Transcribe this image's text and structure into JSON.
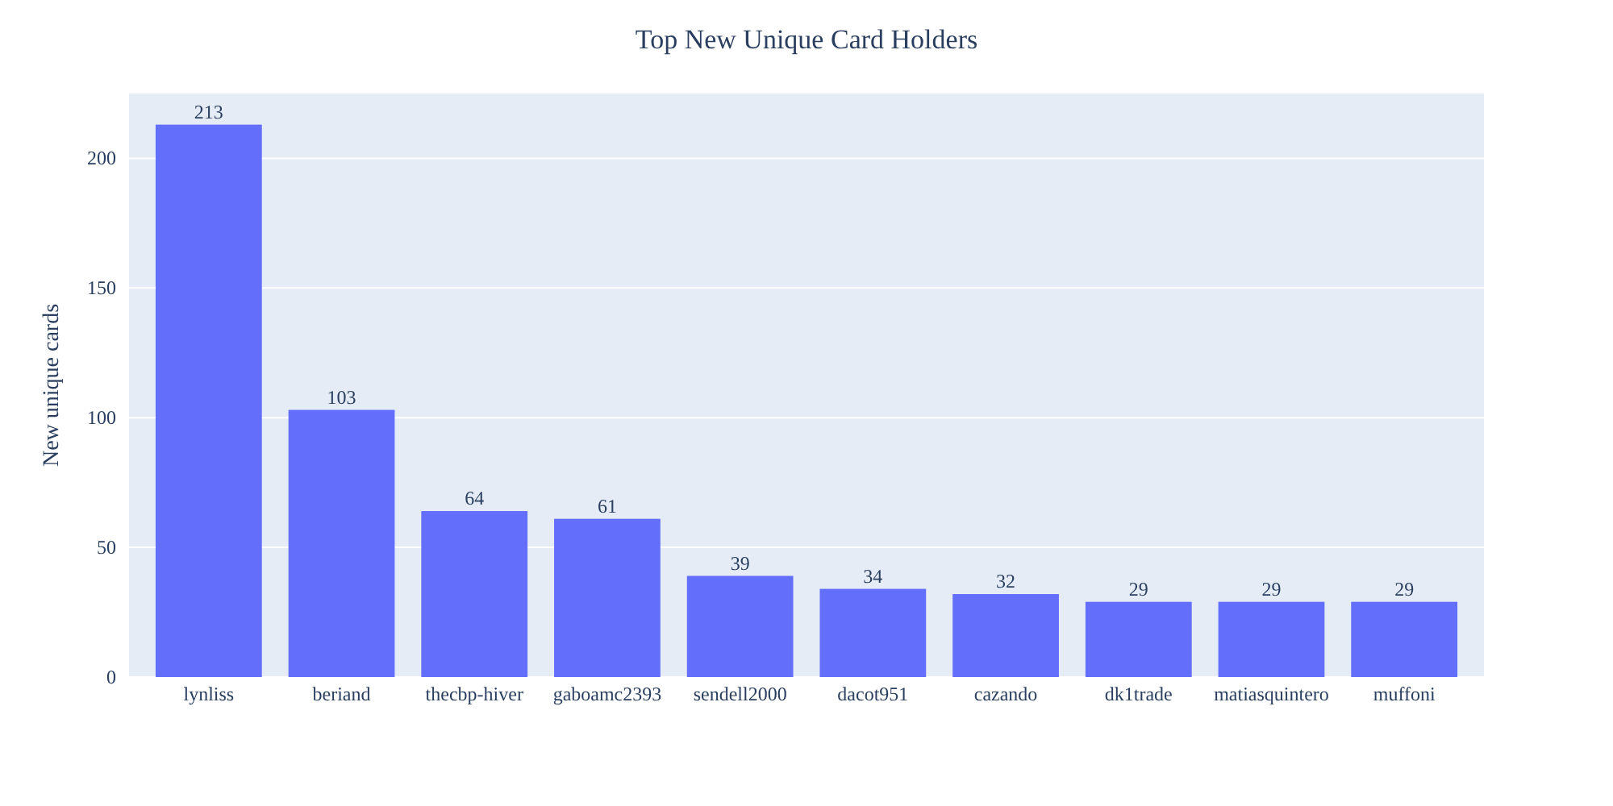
{
  "chart_data": {
    "type": "bar",
    "title": "Top New Unique Card Holders",
    "ylabel": "New unique cards",
    "categories": [
      "lynliss",
      "beriand",
      "thecbp-hiver",
      "gaboamc2393",
      "sendell2000",
      "dacot951",
      "cazando",
      "dk1trade",
      "matiasquintero",
      "muffoni"
    ],
    "values": [
      213,
      103,
      64,
      61,
      39,
      34,
      32,
      29,
      29,
      29
    ],
    "color": "#636efa",
    "ylim": [
      0,
      225
    ],
    "yticks": [
      0,
      50,
      100,
      150,
      200
    ],
    "grid": "y",
    "data_labels": true
  }
}
